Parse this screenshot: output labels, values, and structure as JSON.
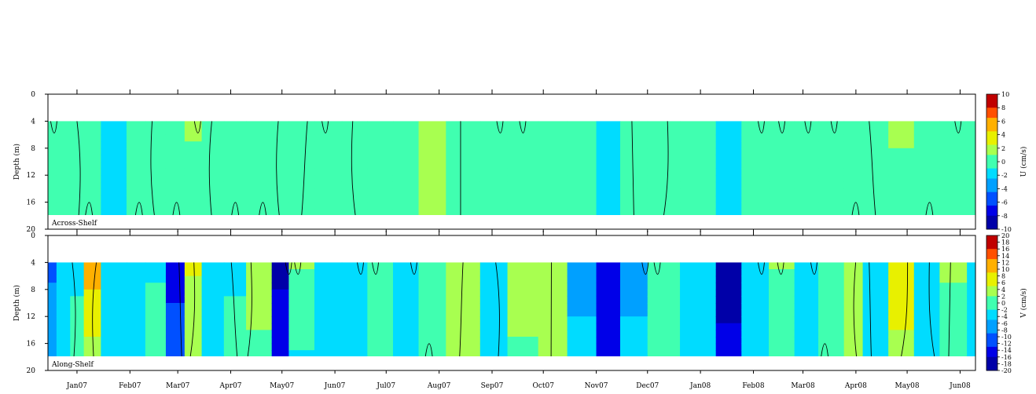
{
  "chart_data": [
    {
      "type": "heatmap",
      "panel_label": "Across-Shelf",
      "ylabel": "Depth (m)",
      "colorbar_label": "U (cm/s)",
      "y_ticks": [
        "0",
        "4",
        "8",
        "12",
        "16",
        "20"
      ],
      "ylim": [
        0,
        20
      ],
      "data_depth_range": [
        4,
        18
      ],
      "y_reversed": true,
      "contour_interval": 1,
      "colorbar_ticks": [
        "10",
        "8",
        "6",
        "4",
        "2",
        "0",
        "-2",
        "-4",
        "-6",
        "-8",
        "-10"
      ],
      "colorbar_range": [
        -10,
        10
      ],
      "contour_line_values": [
        0
      ],
      "columns": [
        {
          "date": "2006-12-15",
          "top": -0.5,
          "bottom": -0.5
        },
        {
          "date": "2006-12-20",
          "top": 0.5,
          "bottom": -0.5
        },
        {
          "date": "2006-12-28",
          "top": 0.5,
          "bottom": -0.5
        },
        {
          "date": "2007-01-05",
          "top": -0.5,
          "bottom": 0.3
        },
        {
          "date": "2007-01-15",
          "top": -1.2,
          "bottom": -1.0
        },
        {
          "date": "2007-01-30",
          "top": -0.5,
          "bottom": -0.6
        },
        {
          "date": "2007-02-10",
          "top": -0.4,
          "bottom": 0.4
        },
        {
          "date": "2007-02-22",
          "top": 0.8,
          "bottom": -0.5
        },
        {
          "date": "2007-03-05",
          "top": 1.0,
          "bottom": 0.5
        },
        {
          "date": "2007-03-15",
          "top": -0.5,
          "bottom": 0.4
        },
        {
          "date": "2007-03-28",
          "top": 0.6,
          "bottom": -0.5
        },
        {
          "date": "2007-04-10",
          "top": 0.8,
          "bottom": 0.6
        },
        {
          "date": "2007-04-25",
          "top": 0.5,
          "bottom": -0.4
        },
        {
          "date": "2007-05-05",
          "top": -0.8,
          "bottom": 0.5
        },
        {
          "date": "2007-05-20",
          "top": 0.3,
          "bottom": -0.5
        },
        {
          "date": "2007-06-05",
          "top": -0.6,
          "bottom": -0.8
        },
        {
          "date": "2007-06-20",
          "top": 0.8,
          "bottom": 0.7
        },
        {
          "date": "2007-07-05",
          "top": 0.5,
          "bottom": 0.8
        },
        {
          "date": "2007-07-20",
          "top": 1.2,
          "bottom": 1.0
        },
        {
          "date": "2007-08-05",
          "top": 0.6,
          "bottom": 0.6
        },
        {
          "date": "2007-08-25",
          "top": -0.8,
          "bottom": -0.8
        },
        {
          "date": "2007-09-10",
          "top": 0.4,
          "bottom": -0.5
        },
        {
          "date": "2007-09-28",
          "top": -0.5,
          "bottom": -0.6
        },
        {
          "date": "2007-10-15",
          "top": -0.7,
          "bottom": -0.7
        },
        {
          "date": "2007-11-01",
          "top": -1.3,
          "bottom": -1.2
        },
        {
          "date": "2007-11-15",
          "top": -0.6,
          "bottom": -0.5
        },
        {
          "date": "2007-12-01",
          "top": 0.8,
          "bottom": 0.5
        },
        {
          "date": "2007-12-20",
          "top": -0.5,
          "bottom": -0.5
        },
        {
          "date": "2008-01-10",
          "top": -1.2,
          "bottom": -1.0
        },
        {
          "date": "2008-01-25",
          "top": -0.8,
          "bottom": -0.8
        },
        {
          "date": "2008-02-10",
          "top": 0.4,
          "bottom": -0.5
        },
        {
          "date": "2008-02-25",
          "top": -0.5,
          "bottom": -0.6
        },
        {
          "date": "2008-03-10",
          "top": 0.5,
          "bottom": -0.4
        },
        {
          "date": "2008-03-25",
          "top": -0.4,
          "bottom": -0.5
        },
        {
          "date": "2008-04-05",
          "top": -0.5,
          "bottom": 0.4
        },
        {
          "date": "2008-04-20",
          "top": 1.5,
          "bottom": -0.4
        },
        {
          "date": "2008-05-05",
          "top": 0.6,
          "bottom": -0.5
        },
        {
          "date": "2008-05-20",
          "top": 0.8,
          "bottom": 0.4
        },
        {
          "date": "2008-06-05",
          "top": -0.5,
          "bottom": 0.5
        }
      ]
    },
    {
      "type": "heatmap",
      "panel_label": "Along-Shelf",
      "ylabel": "Depth (m)",
      "colorbar_label": "V (cm/s)",
      "y_ticks": [
        "0",
        "4",
        "8",
        "12",
        "16",
        "20"
      ],
      "ylim": [
        0,
        20
      ],
      "data_depth_range": [
        4,
        18
      ],
      "y_reversed": true,
      "contour_interval": 1,
      "colorbar_ticks": [
        "20",
        "18",
        "16",
        "14",
        "12",
        "10",
        "8",
        "6",
        "4",
        "2",
        "0",
        "-2",
        "-4",
        "-6",
        "-8",
        "-10",
        "-12",
        "-14",
        "-16",
        "-18",
        "-20"
      ],
      "colorbar_range": [
        -20,
        20
      ],
      "contour_line_values": [
        0
      ],
      "columns": [
        {
          "date": "2006-12-15",
          "top": -10.0,
          "bottom": -6.0
        },
        {
          "date": "2006-12-20",
          "top": -3.0,
          "bottom": -2.0
        },
        {
          "date": "2006-12-28",
          "top": -2.0,
          "bottom": -1.5
        },
        {
          "date": "2007-01-05",
          "top": 11.0,
          "bottom": 4.0
        },
        {
          "date": "2007-01-15",
          "top": -4.0,
          "bottom": -3.0
        },
        {
          "date": "2007-01-30",
          "top": -3.0,
          "bottom": -2.0
        },
        {
          "date": "2007-02-10",
          "top": -2.0,
          "bottom": -1.0
        },
        {
          "date": "2007-02-22",
          "top": -14.0,
          "bottom": -11.0
        },
        {
          "date": "2007-03-05",
          "top": 6.0,
          "bottom": 2.0
        },
        {
          "date": "2007-03-15",
          "top": -5.0,
          "bottom": -4.0
        },
        {
          "date": "2007-03-28",
          "top": -2.0,
          "bottom": -1.5
        },
        {
          "date": "2007-04-10",
          "top": 4.0,
          "bottom": 1.0
        },
        {
          "date": "2007-04-25",
          "top": -17.0,
          "bottom": -15.0
        },
        {
          "date": "2007-05-05",
          "top": 2.0,
          "bottom": -2.0
        },
        {
          "date": "2007-05-20",
          "top": -5.0,
          "bottom": -4.0
        },
        {
          "date": "2007-06-05",
          "top": -2.0,
          "bottom": -3.0
        },
        {
          "date": "2007-06-20",
          "top": 1.0,
          "bottom": -1.0
        },
        {
          "date": "2007-07-05",
          "top": -3.0,
          "bottom": -2.0
        },
        {
          "date": "2007-07-20",
          "top": 1.0,
          "bottom": -1.0
        },
        {
          "date": "2007-08-05",
          "top": 4.0,
          "bottom": 2.0
        },
        {
          "date": "2007-08-25",
          "top": -4.0,
          "bottom": -3.0
        },
        {
          "date": "2007-09-10",
          "top": 3.0,
          "bottom": 1.5
        },
        {
          "date": "2007-09-28",
          "top": 5.0,
          "bottom": 4.0
        },
        {
          "date": "2007-10-15",
          "top": -6.0,
          "bottom": -5.0
        },
        {
          "date": "2007-11-01",
          "top": -16.0,
          "bottom": -15.0
        },
        {
          "date": "2007-11-15",
          "top": -6.0,
          "bottom": -5.0
        },
        {
          "date": "2007-12-01",
          "top": 1.0,
          "bottom": -1.0
        },
        {
          "date": "2007-12-20",
          "top": -3.0,
          "bottom": -2.0
        },
        {
          "date": "2008-01-10",
          "top": -17.0,
          "bottom": -16.0
        },
        {
          "date": "2008-01-25",
          "top": -4.0,
          "bottom": -3.0
        },
        {
          "date": "2008-02-10",
          "top": 2.0,
          "bottom": -1.0
        },
        {
          "date": "2008-02-25",
          "top": -3.0,
          "bottom": -2.0
        },
        {
          "date": "2008-03-10",
          "top": 1.0,
          "bottom": -1.0
        },
        {
          "date": "2008-03-25",
          "top": 5.0,
          "bottom": 4.0
        },
        {
          "date": "2008-04-05",
          "top": -3.0,
          "bottom": -2.0
        },
        {
          "date": "2008-04-20",
          "top": 9.0,
          "bottom": 4.0
        },
        {
          "date": "2008-05-05",
          "top": -3.0,
          "bottom": -4.0
        },
        {
          "date": "2008-05-20",
          "top": 2.0,
          "bottom": 1.0
        },
        {
          "date": "2008-06-05",
          "top": -3.0,
          "bottom": -2.0
        }
      ]
    }
  ],
  "x_axis": {
    "range": [
      "2006-12-15",
      "2008-06-10"
    ],
    "ticks": [
      {
        "date": "2007-01-01",
        "label": "Jan07"
      },
      {
        "date": "2007-02-01",
        "label": "Feb07"
      },
      {
        "date": "2007-03-01",
        "label": "Mar07"
      },
      {
        "date": "2007-04-01",
        "label": "Apr07"
      },
      {
        "date": "2007-05-01",
        "label": "May07"
      },
      {
        "date": "2007-06-01",
        "label": "Jun07"
      },
      {
        "date": "2007-07-01",
        "label": "Jul07"
      },
      {
        "date": "2007-08-01",
        "label": "Aug07"
      },
      {
        "date": "2007-09-01",
        "label": "Sep07"
      },
      {
        "date": "2007-10-01",
        "label": "Oct07"
      },
      {
        "date": "2007-11-01",
        "label": "Nov07"
      },
      {
        "date": "2007-12-01",
        "label": "Dec07"
      },
      {
        "date": "2008-01-01",
        "label": "Jan08"
      },
      {
        "date": "2008-02-01",
        "label": "Feb08"
      },
      {
        "date": "2008-03-01",
        "label": "Mar08"
      },
      {
        "date": "2008-04-01",
        "label": "Apr08"
      },
      {
        "date": "2008-05-01",
        "label": "May08"
      },
      {
        "date": "2008-06-01",
        "label": "Jun08"
      }
    ]
  },
  "colors": {
    "scale": [
      "#0000a8",
      "#0000e8",
      "#0050ff",
      "#00a0ff",
      "#00dcff",
      "#40ffb0",
      "#a8ff50",
      "#e8f000",
      "#ffb000",
      "#ff5000",
      "#c00000"
    ],
    "axis": "#000000",
    "contour": "#000000"
  }
}
